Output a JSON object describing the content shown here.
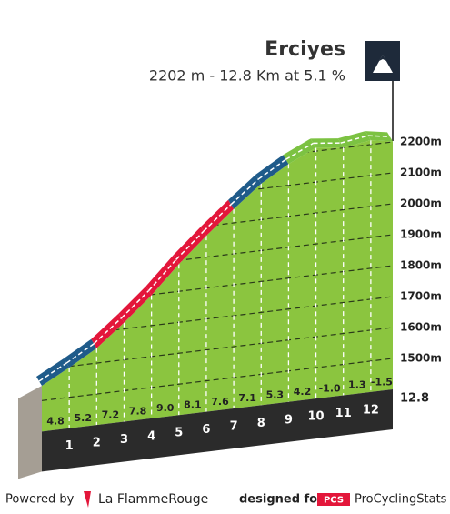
{
  "chart_data": {
    "type": "profile",
    "title": "Erciyes",
    "subtitle": "2202 m - 12.8 Km at 5.1 %",
    "x": [
      0,
      1,
      2,
      3,
      4,
      5,
      6,
      7,
      8,
      9,
      10,
      11,
      12,
      12.8
    ],
    "values": [
      1548,
      1596,
      1648,
      1720,
      1798,
      1888,
      1969,
      2045,
      2116,
      2169,
      2211,
      2201,
      2214,
      2202
    ],
    "segments": {
      "values": [
        4.8,
        5.2,
        7.2,
        7.8,
        9,
        8.1,
        7.6,
        7.1,
        5.3,
        4.2,
        -1,
        1.3,
        -1.5
      ],
      "value_labels": [
        "4.8",
        "5.2",
        "7.2",
        "7.8",
        "9.0",
        "8.1",
        "7.6",
        "7.1",
        "5.3",
        "4.2",
        "-1.0",
        "1.3",
        "-1.5"
      ],
      "colors": [
        "#1f5b8a",
        "#1f5b8a",
        "#e3163a",
        "#e3163a",
        "#e3163a",
        "#e3163a",
        "#e3163a",
        "#1f5b8a",
        "#1f5b8a",
        "#7cc242",
        "#7cc242",
        "#7cc242",
        "#7cc242"
      ]
    },
    "area_color": "#8bc53f",
    "xlim": [
      0,
      12.8
    ],
    "xticks": [
      1,
      2,
      3,
      4,
      5,
      6,
      7,
      8,
      9,
      10,
      11,
      12,
      12.8
    ],
    "ylim": [
      1400,
      2230
    ],
    "yticks": [
      {
        "value": 1500,
        "label": "1500m"
      },
      {
        "value": 1600,
        "label": "1600m"
      },
      {
        "value": 1700,
        "label": "1700m"
      },
      {
        "value": 1800,
        "label": "1800m"
      },
      {
        "value": 1900,
        "label": "1900m"
      },
      {
        "value": 2000,
        "label": "2000m"
      },
      {
        "value": 2100,
        "label": "2100m"
      },
      {
        "value": 2200,
        "label": "2200m"
      }
    ],
    "grid": true
  },
  "footer": {
    "powered": "Powered by",
    "brand": "La FlammeRouge",
    "designed": "designed for",
    "pcs": "PCS",
    "site": "ProCyclingStats"
  }
}
